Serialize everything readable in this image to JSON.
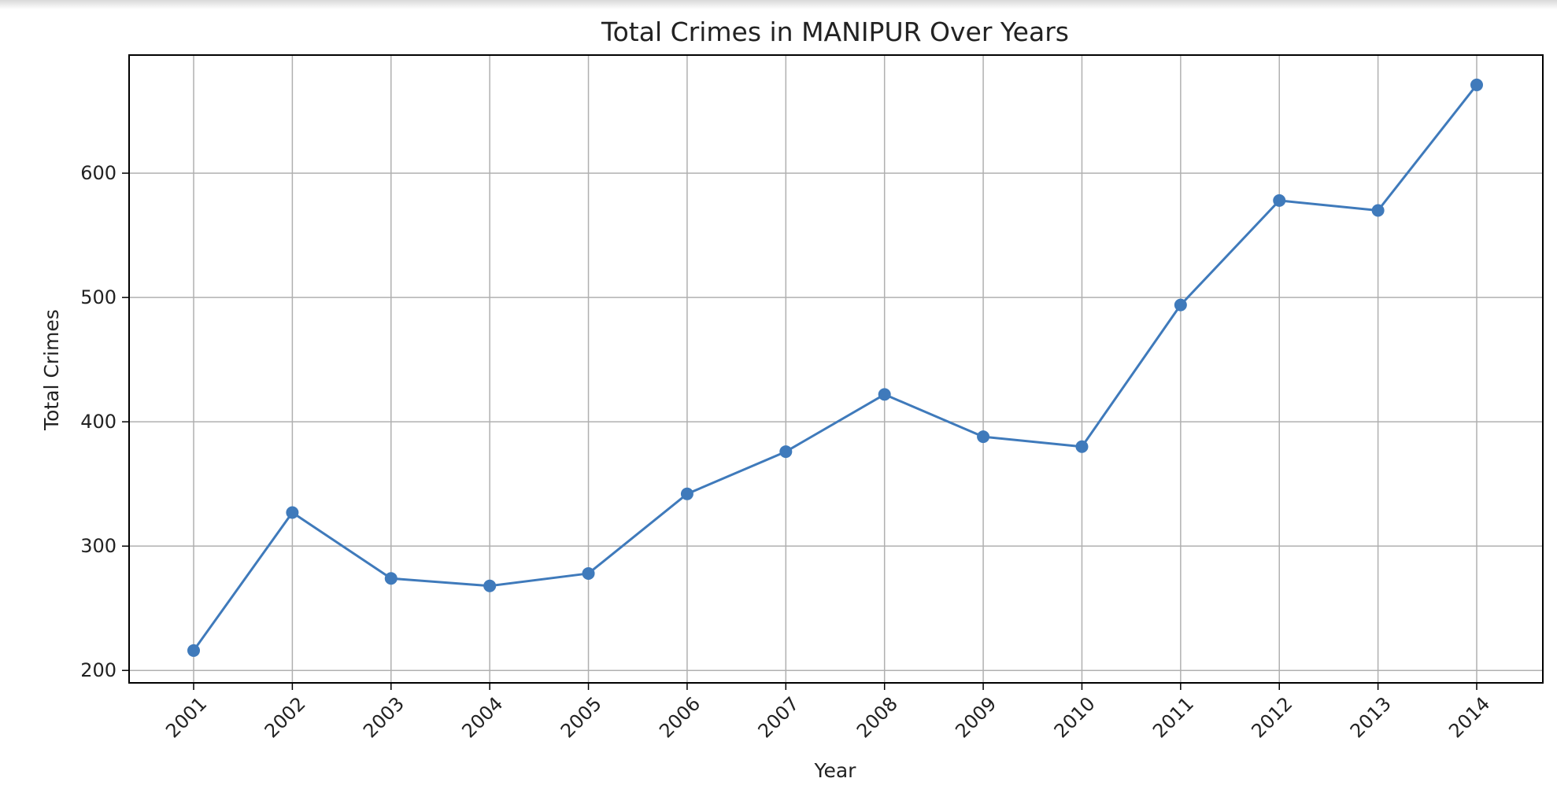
{
  "colors": {
    "line": "#3f7abb",
    "grid": "#b0b0b0",
    "axis": "#000000",
    "text": "#222222"
  },
  "chart_data": {
    "type": "line",
    "title": "Total Crimes in MANIPUR Over Years",
    "xlabel": "Year",
    "ylabel": "Total Crimes",
    "x": [
      "2001",
      "2002",
      "2003",
      "2004",
      "2005",
      "2006",
      "2007",
      "2008",
      "2009",
      "2010",
      "2011",
      "2012",
      "2013",
      "2014"
    ],
    "series": [
      {
        "values": [
          216,
          327,
          274,
          268,
          278,
          342,
          376,
          422,
          388,
          380,
          494,
          578,
          570,
          671
        ],
        "marker": "circle"
      }
    ],
    "yticks": [
      200,
      300,
      400,
      500,
      600
    ],
    "ylim": [
      190,
      695
    ],
    "grid": true,
    "legend": "none"
  }
}
